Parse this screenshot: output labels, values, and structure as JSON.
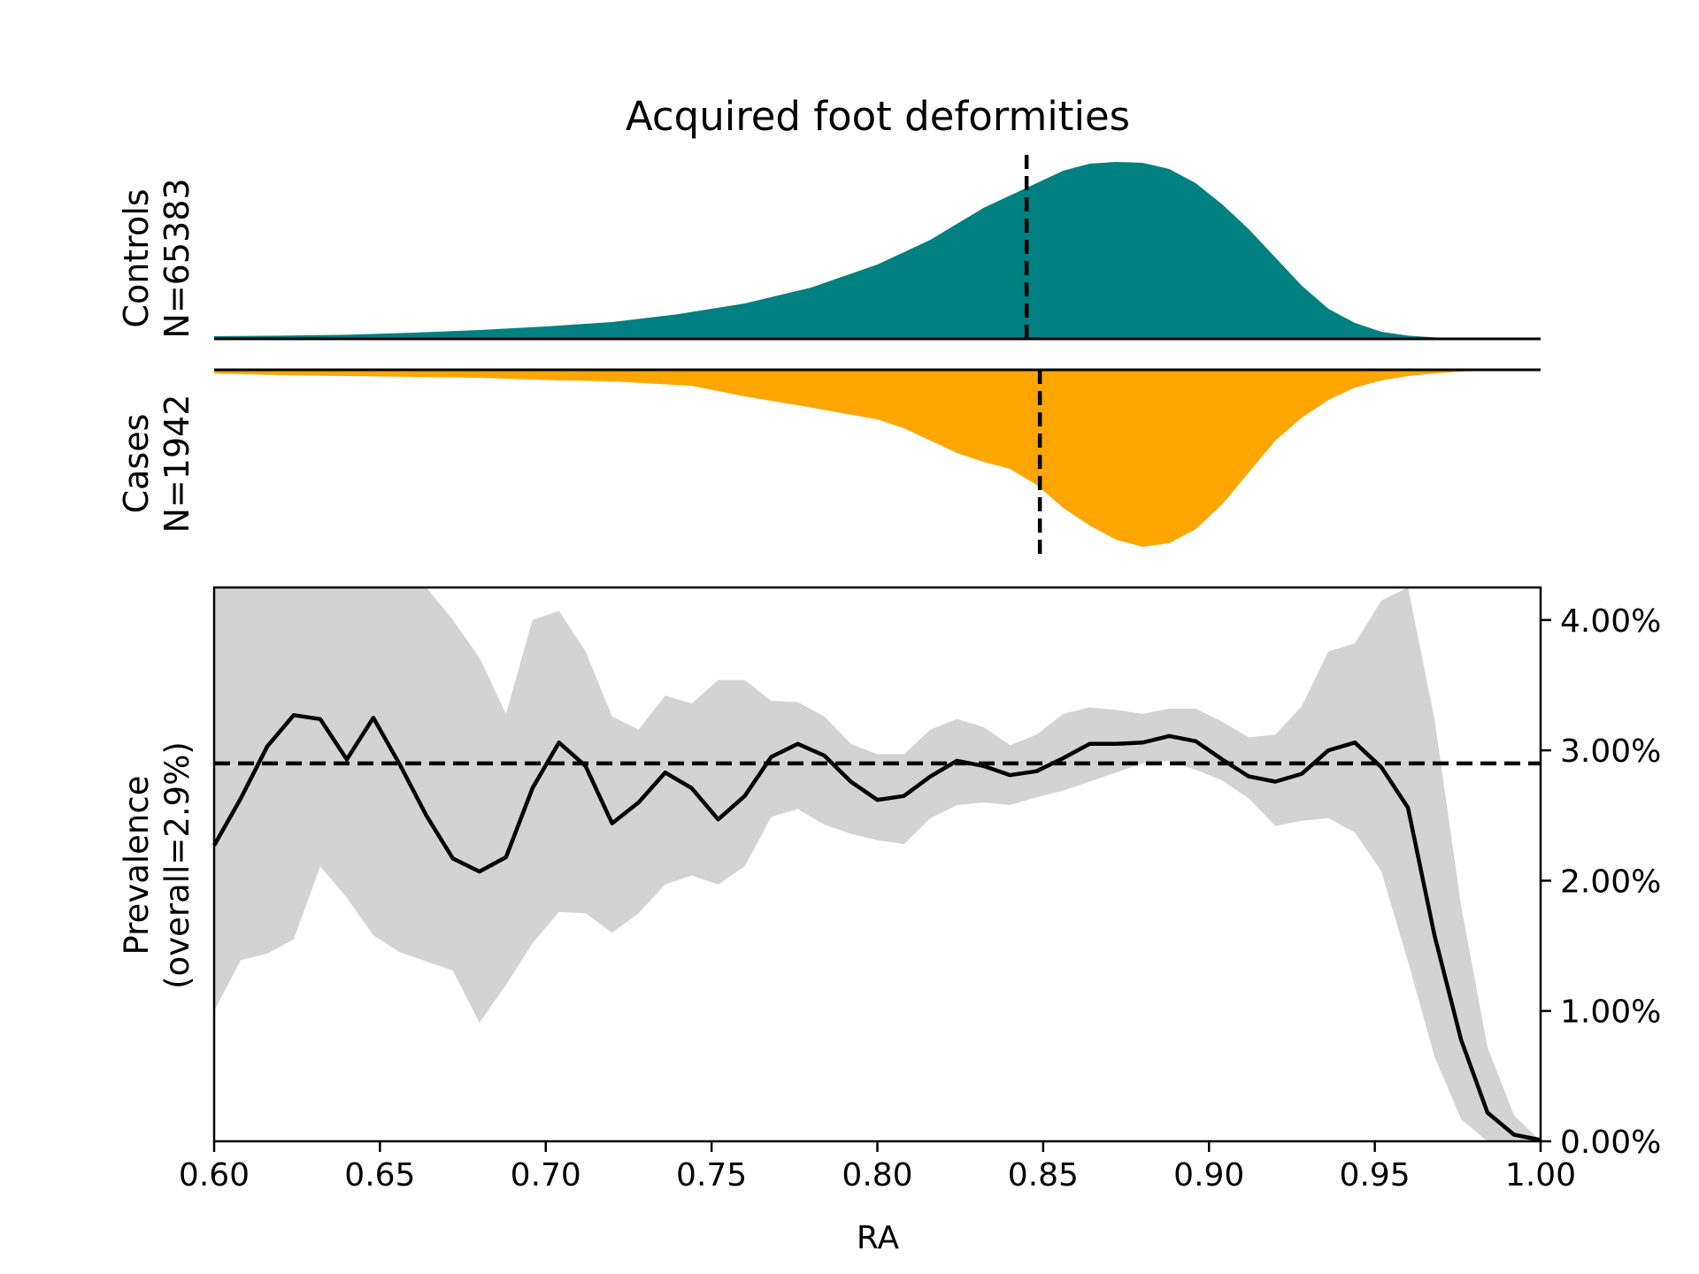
{
  "chart_data": [
    {
      "type": "area",
      "panel": "distribution",
      "title": "Acquired foot deformities",
      "groups": [
        {
          "label_line1": "Controls",
          "label_line2": "N=65383",
          "color": "#008080",
          "direction": "up",
          "median_line": 0.845,
          "x": [
            0.6,
            0.62,
            0.64,
            0.66,
            0.68,
            0.7,
            0.72,
            0.74,
            0.76,
            0.78,
            0.8,
            0.816,
            0.832,
            0.848,
            0.856,
            0.864,
            0.872,
            0.88,
            0.888,
            0.896,
            0.904,
            0.912,
            0.92,
            0.928,
            0.936,
            0.944,
            0.952,
            0.96,
            0.968,
            0.976,
            0.984,
            0.992,
            1.0
          ],
          "density": [
            0.015,
            0.018,
            0.023,
            0.035,
            0.05,
            0.07,
            0.095,
            0.14,
            0.2,
            0.29,
            0.42,
            0.56,
            0.74,
            0.88,
            0.95,
            0.99,
            1.0,
            0.995,
            0.96,
            0.88,
            0.76,
            0.62,
            0.46,
            0.3,
            0.17,
            0.09,
            0.04,
            0.018,
            0.008,
            0.004,
            0.002,
            0.001,
            0.0
          ]
        },
        {
          "label_line1": "Cases",
          "label_line2": "N=1942",
          "color": "#FFA500",
          "direction": "down",
          "median_line": 0.849,
          "x": [
            0.6,
            0.62,
            0.64,
            0.66,
            0.68,
            0.704,
            0.72,
            0.744,
            0.76,
            0.776,
            0.8,
            0.808,
            0.816,
            0.824,
            0.832,
            0.84,
            0.848,
            0.856,
            0.864,
            0.872,
            0.88,
            0.888,
            0.896,
            0.904,
            0.912,
            0.92,
            0.928,
            0.936,
            0.944,
            0.952,
            0.96,
            0.968,
            0.976,
            0.984,
            0.992,
            1.0
          ],
          "density": [
            0.02,
            0.03,
            0.035,
            0.04,
            0.045,
            0.06,
            0.065,
            0.09,
            0.15,
            0.2,
            0.28,
            0.33,
            0.4,
            0.47,
            0.52,
            0.56,
            0.65,
            0.78,
            0.88,
            0.96,
            1.0,
            0.98,
            0.9,
            0.76,
            0.58,
            0.4,
            0.27,
            0.17,
            0.1,
            0.06,
            0.035,
            0.02,
            0.01,
            0.005,
            0.003,
            0.001,
            0.0
          ]
        }
      ]
    },
    {
      "type": "line",
      "panel": "prevalence",
      "xlabel": "RA",
      "ylabel_line1": "Prevalence",
      "ylabel_line2": "(overall=2.9%)",
      "xlim": [
        0.6,
        1.0
      ],
      "ylim": [
        0.0,
        4.25
      ],
      "xticks": [
        0.6,
        0.65,
        0.7,
        0.75,
        0.8,
        0.85,
        0.9,
        0.95,
        1.0
      ],
      "xtick_labels": [
        "0.60",
        "0.65",
        "0.70",
        "0.75",
        "0.80",
        "0.85",
        "0.90",
        "0.95",
        "1.00"
      ],
      "yticks": [
        0,
        1,
        2,
        3,
        4
      ],
      "ytick_labels": [
        "0.00%",
        "1.00%",
        "2.00%",
        "3.00%",
        "4.00%"
      ],
      "ytick_side": "right",
      "overall_line": 2.9,
      "line_color": "#000000",
      "band_color": "#d3d3d3",
      "x": [
        0.6,
        0.608,
        0.616,
        0.624,
        0.632,
        0.64,
        0.648,
        0.656,
        0.664,
        0.672,
        0.68,
        0.688,
        0.696,
        0.704,
        0.712,
        0.72,
        0.728,
        0.736,
        0.744,
        0.752,
        0.76,
        0.768,
        0.776,
        0.784,
        0.792,
        0.8,
        0.808,
        0.816,
        0.824,
        0.832,
        0.84,
        0.848,
        0.856,
        0.864,
        0.872,
        0.88,
        0.888,
        0.896,
        0.904,
        0.912,
        0.92,
        0.928,
        0.936,
        0.944,
        0.952,
        0.96,
        0.968,
        0.976,
        0.984,
        0.992,
        1.0
      ],
      "prevalence": [
        2.27,
        2.63,
        3.03,
        3.27,
        3.24,
        2.93,
        3.25,
        2.89,
        2.5,
        2.17,
        2.07,
        2.18,
        2.71,
        3.06,
        2.88,
        2.44,
        2.6,
        2.83,
        2.71,
        2.47,
        2.65,
        2.95,
        3.05,
        2.96,
        2.76,
        2.62,
        2.65,
        2.8,
        2.92,
        2.88,
        2.81,
        2.84,
        2.94,
        3.05,
        3.05,
        3.06,
        3.11,
        3.07,
        2.93,
        2.8,
        2.76,
        2.82,
        3.0,
        3.06,
        2.87,
        2.56,
        1.58,
        0.78,
        0.22,
        0.05,
        0.01
      ],
      "ci_upper": [
        4.25,
        4.25,
        4.25,
        4.25,
        4.25,
        4.25,
        4.25,
        4.25,
        4.25,
        4.0,
        3.71,
        3.28,
        4.0,
        4.07,
        3.76,
        3.26,
        3.16,
        3.42,
        3.36,
        3.54,
        3.54,
        3.38,
        3.37,
        3.26,
        3.05,
        2.97,
        2.97,
        3.16,
        3.24,
        3.18,
        3.04,
        3.12,
        3.28,
        3.33,
        3.31,
        3.28,
        3.32,
        3.32,
        3.22,
        3.1,
        3.12,
        3.34,
        3.76,
        3.82,
        4.15,
        4.25,
        3.24,
        1.81,
        0.72,
        0.2,
        0.0
      ],
      "ci_lower": [
        1.0,
        1.39,
        1.44,
        1.55,
        2.11,
        1.87,
        1.58,
        1.45,
        1.38,
        1.31,
        0.91,
        1.2,
        1.52,
        1.76,
        1.75,
        1.6,
        1.75,
        1.97,
        2.04,
        1.97,
        2.11,
        2.49,
        2.55,
        2.43,
        2.36,
        2.31,
        2.28,
        2.48,
        2.58,
        2.6,
        2.58,
        2.64,
        2.69,
        2.76,
        2.83,
        2.9,
        2.92,
        2.85,
        2.77,
        2.63,
        2.42,
        2.46,
        2.48,
        2.37,
        2.07,
        1.38,
        0.65,
        0.17,
        0.0,
        0.0,
        0.0
      ]
    }
  ]
}
